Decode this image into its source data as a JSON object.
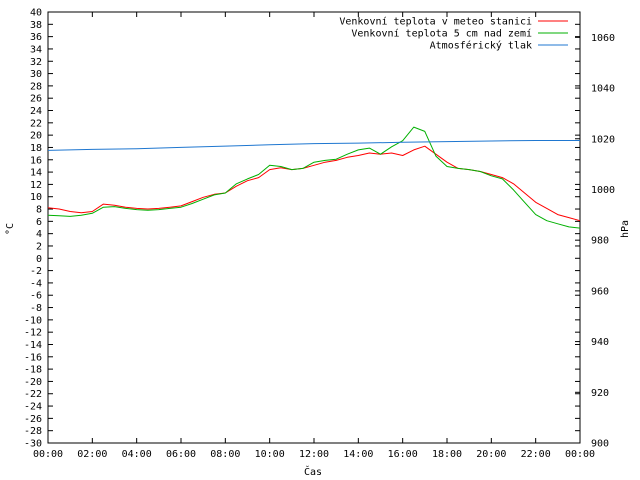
{
  "chart_data": {
    "type": "line",
    "title": "",
    "xlabel": "Čas",
    "ylabel": "°C",
    "y2label": "hPa",
    "xlim": [
      0,
      24
    ],
    "ylim": [
      -30,
      40
    ],
    "y2lim": [
      900,
      1070
    ],
    "x_ticks": [
      "00:00",
      "02:00",
      "04:00",
      "06:00",
      "08:00",
      "10:00",
      "12:00",
      "14:00",
      "16:00",
      "18:00",
      "20:00",
      "22:00",
      "00:00"
    ],
    "y_ticks": [
      40,
      38,
      36,
      34,
      32,
      30,
      28,
      26,
      24,
      22,
      20,
      18,
      16,
      14,
      12,
      10,
      8,
      6,
      4,
      2,
      0,
      -2,
      -4,
      -6,
      -8,
      -10,
      -12,
      -14,
      -16,
      -18,
      -20,
      -22,
      -24,
      -26,
      -28,
      -30
    ],
    "y2_ticks": [
      1060,
      1040,
      1020,
      1000,
      980,
      960,
      940,
      920,
      900
    ],
    "grid": false,
    "legend_position": "top-right",
    "series": [
      {
        "name": "Venkovní teplota v meteo stanici",
        "axis": "left",
        "color": "#ff0000",
        "x": [
          0,
          0.5,
          1,
          1.5,
          2,
          2.5,
          3,
          3.5,
          4,
          4.5,
          5,
          5.5,
          6,
          6.5,
          7,
          7.5,
          8,
          8.5,
          9,
          9.5,
          10,
          10.5,
          11,
          11.5,
          12,
          12.5,
          13,
          13.5,
          14,
          14.5,
          15,
          15.5,
          16,
          16.5,
          17,
          17.5,
          18,
          18.5,
          19,
          19.5,
          20,
          20.5,
          21,
          21.5,
          22,
          22.5,
          23,
          23.5,
          24
        ],
        "y": [
          8.2,
          8,
          7.6,
          7.4,
          7.6,
          8.8,
          8.6,
          8.3,
          8.1,
          8,
          8.1,
          8.3,
          8.5,
          9.2,
          9.9,
          10.4,
          10.6,
          11.7,
          12.6,
          13.1,
          14.4,
          14.7,
          14.4,
          14.6,
          15.1,
          15.6,
          15.9,
          16.4,
          16.7,
          17.1,
          16.9,
          17.1,
          16.7,
          17.6,
          18.2,
          16.9,
          15.6,
          14.6,
          14.4,
          14.1,
          13.6,
          13.1,
          12.1,
          10.6,
          9.1,
          8.1,
          7.1,
          6.6,
          6.1
        ]
      },
      {
        "name": "Venkovní teplota 5 cm nad zemí",
        "axis": "left",
        "color": "#00b000",
        "x": [
          0,
          0.5,
          1,
          1.5,
          2,
          2.5,
          3,
          3.5,
          4,
          4.5,
          5,
          5.5,
          6,
          6.5,
          7,
          7.5,
          8,
          8.5,
          9,
          9.5,
          10,
          10.5,
          11,
          11.5,
          12,
          12.5,
          13,
          13.5,
          14,
          14.5,
          15,
          15.5,
          16,
          16.5,
          17,
          17.5,
          18,
          18.5,
          19,
          19.5,
          20,
          20.5,
          21,
          21.5,
          22,
          22.5,
          23,
          23.5,
          24
        ],
        "y": [
          7,
          6.9,
          6.8,
          7,
          7.3,
          8.3,
          8.4,
          8.1,
          7.9,
          7.8,
          7.9,
          8.1,
          8.3,
          8.9,
          9.6,
          10.3,
          10.6,
          12.1,
          12.9,
          13.6,
          15.1,
          14.9,
          14.4,
          14.6,
          15.6,
          15.9,
          16.1,
          16.9,
          17.6,
          17.9,
          16.9,
          18.1,
          19.1,
          21.3,
          20.6,
          16.6,
          14.9,
          14.6,
          14.4,
          14.1,
          13.4,
          12.9,
          11.1,
          9.1,
          7.1,
          6.1,
          5.6,
          5.1,
          4.9
        ]
      },
      {
        "name": "Atmosférický tlak",
        "axis": "right",
        "color": "#1f77d0",
        "x": [
          0,
          2,
          4,
          6,
          8,
          10,
          12,
          14,
          16,
          18,
          20,
          22,
          24
        ],
        "y": [
          1015.4,
          1015.8,
          1016.1,
          1016.6,
          1017.1,
          1017.6,
          1018.1,
          1018.3,
          1018.6,
          1018.9,
          1019.1,
          1019.3,
          1019.3
        ]
      }
    ]
  }
}
